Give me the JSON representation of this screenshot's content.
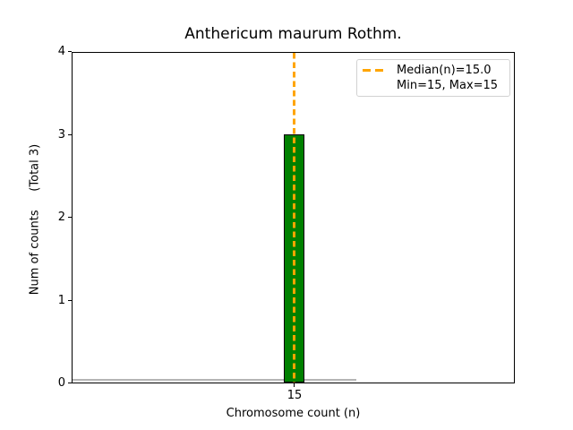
{
  "chart": {
    "title": "Anthericum maurum Rothm.",
    "xlabel": "Chromosome count (n)",
    "ylabel": "Num of counts     (Total 3)",
    "yticks": [
      "4",
      "3",
      "2",
      "1",
      "0"
    ],
    "xtick": "15"
  },
  "legend": {
    "items": [
      "Median(n)=15.0",
      "Min=15, Max=15"
    ]
  },
  "colors": {
    "bar_fill": "#008000",
    "bar_edge": "#000000",
    "median_line": "#FFA500",
    "baseline_segment": "#b5b5b5",
    "legend_border": "#d2d2d2",
    "text": "#000000",
    "background": "#ffffff"
  },
  "chart_data": {
    "type": "bar",
    "title": "Anthericum maurum Rothm.",
    "xlabel": "Chromosome count (n)",
    "ylabel": "Num of counts (Total 3)",
    "categories": [
      15
    ],
    "values": [
      3
    ],
    "total_counts": 3,
    "median_n": 15.0,
    "min_n": 15,
    "max_n": 15,
    "ylim": [
      0,
      4
    ],
    "yticks": [
      0,
      1,
      2,
      3,
      4
    ],
    "xticks": [
      15
    ],
    "grid": false,
    "legend_position": "upper right",
    "legend_entries": [
      "Median(n)=15.0",
      "Min=15, Max=15"
    ],
    "bar_color": "#008000",
    "median_line_style": "dashed",
    "median_line_color": "#FFA500"
  }
}
